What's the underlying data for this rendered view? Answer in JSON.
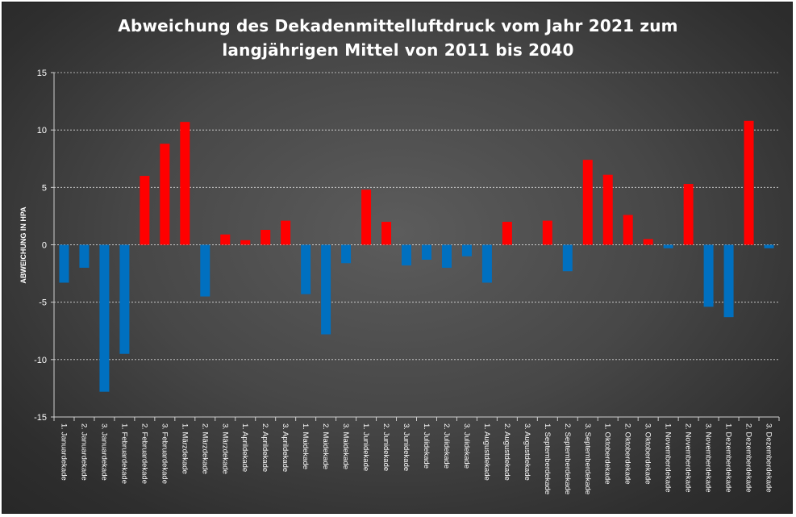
{
  "chart_data": {
    "type": "bar",
    "title_lines": [
      "Abweichung des Dekadenmittelluftdruck vom Jahr 2021 zum",
      "langjährigen Mittel von 2011 bis 2040"
    ],
    "xlabel": "",
    "ylabel": "ABWEICHUNG IN HPA",
    "ylim": [
      -15,
      15
    ],
    "yticks": [
      -15,
      -10,
      -5,
      0,
      5,
      10,
      15
    ],
    "grid": true,
    "positive_color": "#ff0000",
    "negative_color": "#0070c0",
    "categories": [
      "1. Januardekade",
      "2. Januardekade",
      "3. Januardekade",
      "1. Februardekade",
      "2. Februardekade",
      "3. Februardekade",
      "1. Märzdekade",
      "2. Märzdekade",
      "3. Märzdekade",
      "1. Aprildekade",
      "2. Aprildekade",
      "3. Aprildekade",
      "1. Maidekade",
      "2. Maidekade",
      "3. Maidekade",
      "1. Junidekade",
      "2. Junidekade",
      "3. Junidekade",
      "1. Julidekade",
      "2. Julidekade",
      "3. Julidekade",
      "1. Augustdekade",
      "2. Augustdekade",
      "3. Augustdekade",
      "1. Septemberdekade",
      "2. Septemberdekade",
      "3. Septemberdekade",
      "1. Oktoberdekade",
      "2. Oktoberdekade",
      "3. Oktoberdekade",
      "1. Novemberdekade",
      "2. Novemberdekade",
      "3. Novemberdekade",
      "1. Dezemberdekade",
      "2. Dezemberdekade",
      "3. Dezemberdekade"
    ],
    "values": [
      -3.3,
      -2.0,
      -12.8,
      -9.5,
      6.0,
      8.8,
      10.7,
      -4.5,
      0.9,
      0.4,
      1.3,
      2.1,
      -4.3,
      -7.8,
      -1.6,
      4.8,
      2.0,
      -1.8,
      -1.3,
      -2.0,
      -1.0,
      -3.3,
      2.0,
      0.0,
      2.1,
      -2.3,
      7.4,
      6.1,
      2.6,
      0.5,
      -0.3,
      5.3,
      -5.4,
      -6.3,
      10.8,
      -0.3
    ]
  }
}
